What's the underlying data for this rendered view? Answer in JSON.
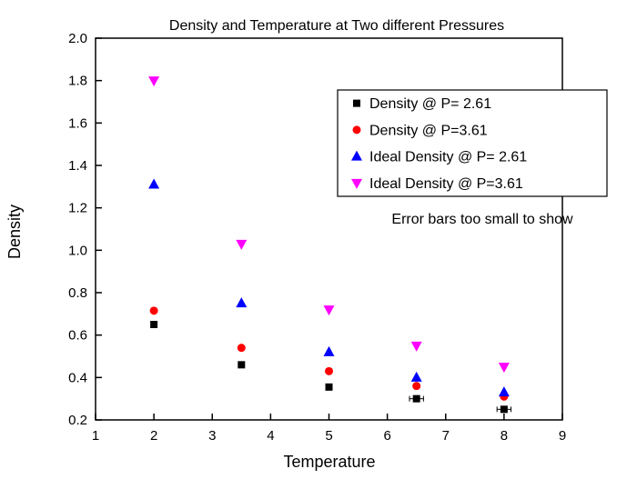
{
  "chart_data": {
    "type": "scatter",
    "title": "Density and Temperature at Two different Pressures",
    "xlabel": "Temperature",
    "ylabel": "Density",
    "annotation": "Error bars too small to show",
    "xlim": [
      1,
      9
    ],
    "ylim": [
      0.2,
      2.0
    ],
    "xticks": [
      1,
      2,
      3,
      4,
      5,
      6,
      7,
      8,
      9
    ],
    "yticks": [
      0.2,
      0.4,
      0.6,
      0.8,
      1.0,
      1.2,
      1.4,
      1.6,
      1.8,
      2.0
    ],
    "grid": false,
    "legend_position": "upper right inside",
    "x": [
      2,
      3.5,
      5,
      6.5,
      8
    ],
    "series": [
      {
        "name": "Density @ P= 2.61",
        "marker": "square",
        "color": "#000000",
        "values": [
          0.65,
          0.46,
          0.355,
          0.3,
          0.25
        ],
        "xerr": [
          0,
          0,
          0,
          0.12,
          0.12
        ]
      },
      {
        "name": "Density @ P=3.61",
        "marker": "circle",
        "color": "#ff0000",
        "values": [
          0.715,
          0.54,
          0.43,
          0.36,
          0.31
        ],
        "xerr": [
          0,
          0,
          0,
          0,
          0
        ]
      },
      {
        "name": "Ideal Density @ P= 2.61",
        "marker": "triangle-up",
        "color": "#0000ff",
        "values": [
          1.31,
          0.75,
          0.52,
          0.4,
          0.33
        ],
        "xerr": [
          0,
          0,
          0,
          0,
          0
        ]
      },
      {
        "name": "Ideal Density @ P=3.61",
        "marker": "triangle-down",
        "color": "#ff00ff",
        "values": [
          1.8,
          1.03,
          0.72,
          0.55,
          0.45
        ],
        "xerr": [
          0,
          0,
          0,
          0,
          0
        ]
      }
    ]
  }
}
